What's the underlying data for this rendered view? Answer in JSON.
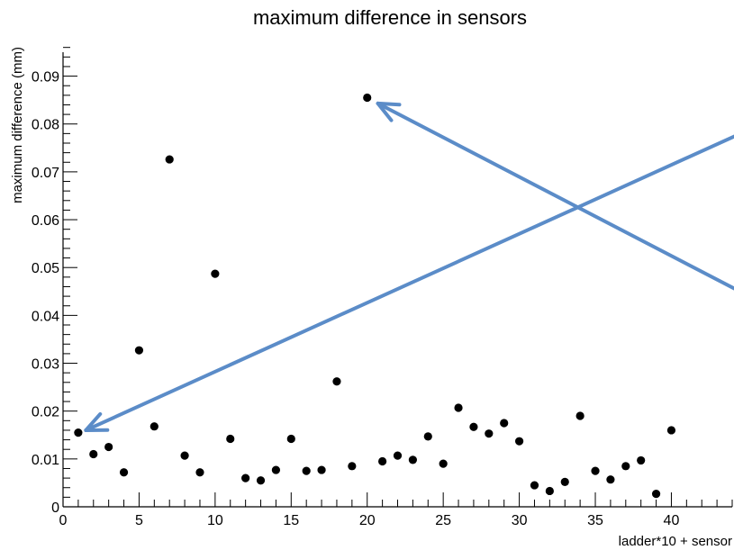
{
  "chart_data": {
    "type": "scatter",
    "title": "maximum difference in sensors",
    "xlabel": "ladder*10 + sensor",
    "ylabel": "maximum difference (mm)",
    "xlim": [
      0,
      44
    ],
    "ylim": [
      0,
      0.095
    ],
    "x_ticks": [
      0,
      5,
      10,
      15,
      20,
      25,
      30,
      35,
      40
    ],
    "x_tick_labels": [
      "0",
      "5",
      "10",
      "15",
      "20",
      "25",
      "30",
      "35",
      "40"
    ],
    "y_ticks": [
      0,
      0.01,
      0.02,
      0.03,
      0.04,
      0.05,
      0.06,
      0.07,
      0.08,
      0.09
    ],
    "y_tick_labels": [
      "0",
      "0.01",
      "0.02",
      "0.03",
      "0.04",
      "0.05",
      "0.06",
      "0.07",
      "0.08",
      "0.09"
    ],
    "grid": false,
    "marker_color": "#000000",
    "points": [
      {
        "x": 1,
        "y": 0.0155
      },
      {
        "x": 2,
        "y": 0.011
      },
      {
        "x": 3,
        "y": 0.0125
      },
      {
        "x": 4,
        "y": 0.0072
      },
      {
        "x": 5,
        "y": 0.0327
      },
      {
        "x": 6,
        "y": 0.0168
      },
      {
        "x": 7,
        "y": 0.0726
      },
      {
        "x": 8,
        "y": 0.0107
      },
      {
        "x": 9,
        "y": 0.0072
      },
      {
        "x": 10,
        "y": 0.0487
      },
      {
        "x": 11,
        "y": 0.0142
      },
      {
        "x": 12,
        "y": 0.006
      },
      {
        "x": 13,
        "y": 0.0055
      },
      {
        "x": 14,
        "y": 0.0077
      },
      {
        "x": 15,
        "y": 0.0142
      },
      {
        "x": 16,
        "y": 0.0075
      },
      {
        "x": 17,
        "y": 0.0077
      },
      {
        "x": 18,
        "y": 0.0262
      },
      {
        "x": 19,
        "y": 0.0085
      },
      {
        "x": 20,
        "y": 0.0855
      },
      {
        "x": 21,
        "y": 0.0095
      },
      {
        "x": 22,
        "y": 0.0107
      },
      {
        "x": 23,
        "y": 0.0098
      },
      {
        "x": 24,
        "y": 0.0147
      },
      {
        "x": 25,
        "y": 0.009
      },
      {
        "x": 26,
        "y": 0.0207
      },
      {
        "x": 27,
        "y": 0.0167
      },
      {
        "x": 28,
        "y": 0.0153
      },
      {
        "x": 29,
        "y": 0.0175
      },
      {
        "x": 30,
        "y": 0.0137
      },
      {
        "x": 31,
        "y": 0.0045
      },
      {
        "x": 32,
        "y": 0.0033
      },
      {
        "x": 33,
        "y": 0.0052
      },
      {
        "x": 34,
        "y": 0.019
      },
      {
        "x": 35,
        "y": 0.0075
      },
      {
        "x": 36,
        "y": 0.0057
      },
      {
        "x": 37,
        "y": 0.0085
      },
      {
        "x": 38,
        "y": 0.0097
      },
      {
        "x": 39,
        "y": 0.0027
      },
      {
        "x": 40,
        "y": 0.016
      }
    ],
    "annotations": {
      "arrow_color": "#5b8cc8",
      "arrows": [
        {
          "from_x": 44.2,
          "from_y": 0.0455,
          "to_x": 20.7,
          "to_y": 0.0843
        },
        {
          "from_x": 44.2,
          "from_y": 0.0775,
          "to_x": 1.5,
          "to_y": 0.016
        }
      ]
    }
  }
}
